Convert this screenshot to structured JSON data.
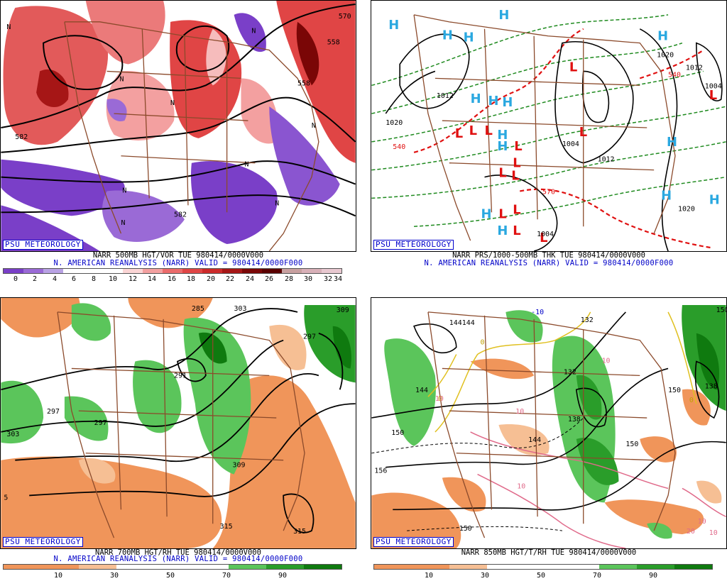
{
  "tag_label": "PSU METEOROLOGY",
  "panels": {
    "tl": {
      "caption1": "NARR 500MB HGT/VOR TUE 980414/0000V000",
      "caption2": "N. AMERICAN REANALYSIS (NARR) VALID = 980414/0000F000",
      "ticks": [
        "0",
        "2",
        "4",
        "6",
        "8",
        "10",
        "12",
        "14",
        "16",
        "18",
        "20",
        "22",
        "24",
        "26",
        "28",
        "30",
        "32",
        "34"
      ],
      "labels": [
        "N",
        "N",
        "N",
        "N",
        "N",
        "N",
        "N",
        "N",
        "N",
        "570",
        "558",
        "582",
        "558",
        "582"
      ]
    },
    "tr": {
      "caption1": "NARR PRS/1000-500MB THK TUE 980414/0000V000",
      "caption2": "N. AMERICAN REANALYSIS (NARR) VALID = 980414/0000F000",
      "labels": [
        "1012",
        "1020",
        "1004",
        "1012",
        "1020",
        "540",
        "570",
        "540",
        "1020",
        "1012",
        "1004",
        "1004"
      ]
    },
    "bl": {
      "caption1": "NARR 700MB HGT/RH TUE 980414/0000V000",
      "caption2": "N. AMERICAN REANALYSIS (NARR) VALID = 980414/0000F000",
      "ticks": [
        "10",
        "30",
        "50",
        "70",
        "90"
      ],
      "labels": [
        "285",
        "303",
        "309",
        "297",
        "297",
        "303",
        "309",
        "291",
        "297",
        "315",
        "315",
        "5"
      ]
    },
    "br": {
      "caption1": "NARR 850MB HGT/T/RH TUE 980414/0000V000",
      "ticks": [
        "10",
        "30",
        "50",
        "70",
        "90"
      ],
      "labels": [
        "144144",
        "144",
        "150",
        "156",
        "150",
        "-10",
        "132",
        "132",
        "138",
        "138",
        "144",
        "150",
        "150",
        "150",
        "0",
        "0",
        "0",
        "10",
        "10",
        "10",
        "20",
        "10",
        "10",
        "10"
      ]
    }
  },
  "colors": {
    "vort_scale": [
      "#7a3fc8",
      "#9a6ad6",
      "#b9a2e4",
      "#ffffff",
      "#ffffff",
      "#ffffff",
      "#fbd5d5",
      "#f3a0a0",
      "#eb6b6b",
      "#e04545",
      "#cc2a2a",
      "#a61616",
      "#7a0606",
      "#5a0000",
      "#c8a0a0",
      "#d8b0b8",
      "#e8c8d0"
    ],
    "rh_scale": [
      "#f0955a",
      "#f0955a",
      "#f6bf94",
      "#ffffff",
      "#ffffff",
      "#ffffff",
      "#5bc55b",
      "#2a9d2a",
      "#0f7a0f"
    ]
  }
}
